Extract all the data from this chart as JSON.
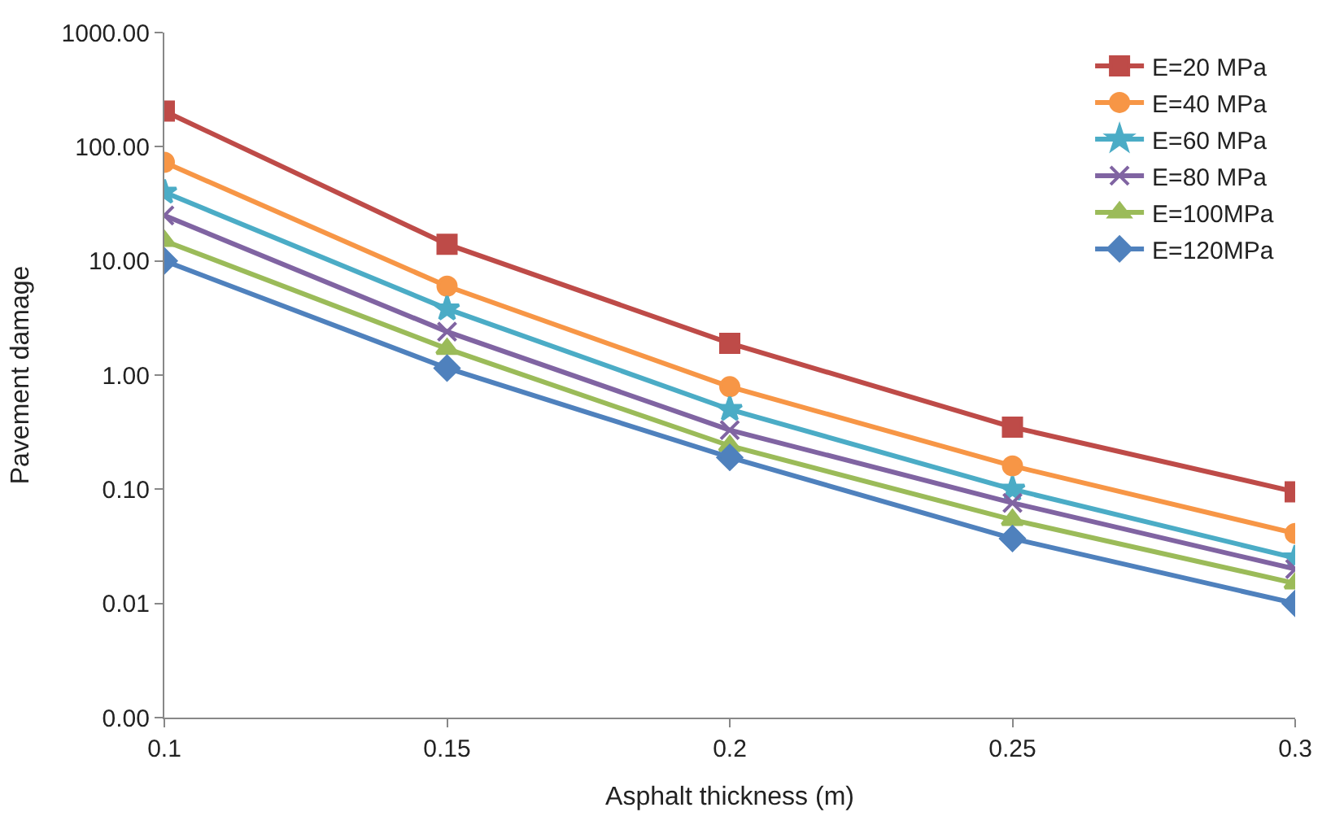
{
  "chart_data": {
    "type": "line",
    "xlabel": "Asphalt thickness (m)",
    "ylabel": "Pavement damage",
    "x": [
      0.1,
      0.15,
      0.2,
      0.25,
      0.3
    ],
    "series": [
      {
        "name": "E=20 MPa",
        "color": "#be4b48",
        "marker": "square",
        "values": [
          205,
          14,
          1.9,
          0.35,
          0.095
        ]
      },
      {
        "name": "E=40 MPa",
        "color": "#f79646",
        "marker": "circle",
        "values": [
          73,
          6.0,
          0.79,
          0.16,
          0.041
        ]
      },
      {
        "name": "E=60 MPa",
        "color": "#4bacc6",
        "marker": "star",
        "values": [
          40,
          3.8,
          0.5,
          0.1,
          0.025
        ]
      },
      {
        "name": "E=80 MPa",
        "color": "#8064a2",
        "marker": "cross",
        "values": [
          25,
          2.4,
          0.33,
          0.076,
          0.02
        ]
      },
      {
        "name": "E=100MPa",
        "color": "#9bbb59",
        "marker": "triangle",
        "values": [
          15,
          1.7,
          0.24,
          0.054,
          0.015
        ]
      },
      {
        "name": "E=120MPa",
        "color": "#4f81bd",
        "marker": "diamond",
        "values": [
          10,
          1.15,
          0.19,
          0.037,
          0.01
        ]
      }
    ],
    "log": "y",
    "xlim": [
      0.1,
      0.3
    ],
    "xticks": [
      0.1,
      0.15,
      0.2,
      0.25,
      0.3
    ],
    "ylim": [
      0.001,
      1000
    ],
    "yticks": [
      {
        "value": 0.001,
        "label": "0.00"
      },
      {
        "value": 0.01,
        "label": "0.01"
      },
      {
        "value": 0.1,
        "label": "0.10"
      },
      {
        "value": 1,
        "label": "1.00"
      },
      {
        "value": 10,
        "label": "10.00"
      },
      {
        "value": 100,
        "label": "100.00"
      },
      {
        "value": 1000,
        "label": "1000.00"
      }
    ],
    "legend": "top right",
    "line_style": "solid"
  }
}
